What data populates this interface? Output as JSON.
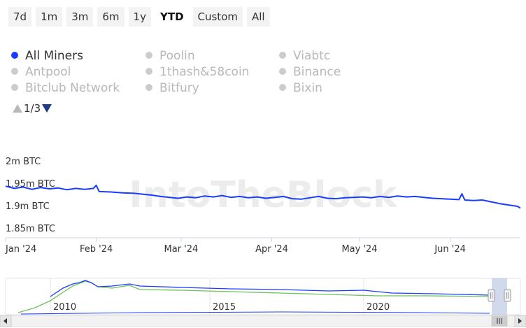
{
  "range_selector": {
    "buttons": [
      "7d",
      "1m",
      "3m",
      "6m",
      "1y",
      "YTD",
      "Custom",
      "All"
    ],
    "selected": "YTD"
  },
  "legend": {
    "items": [
      {
        "label": "All Miners",
        "active": true
      },
      {
        "label": "Antpool",
        "active": false
      },
      {
        "label": "Bitclub Network",
        "active": false
      },
      {
        "label": "Poolin",
        "active": false
      },
      {
        "label": "1thash&58coin",
        "active": false
      },
      {
        "label": "Bitfury",
        "active": false
      },
      {
        "label": "Viabtc",
        "active": false
      },
      {
        "label": "Binance",
        "active": false
      },
      {
        "label": "Bixin",
        "active": false
      }
    ],
    "page": "1/3"
  },
  "watermark": "IntoTheBlock",
  "chart_data": {
    "type": "line",
    "ylabel_unit": "BTC",
    "ylim": [
      1.85,
      2.0
    ],
    "yticks": [
      {
        "value": 2.0,
        "label": "2m BTC"
      },
      {
        "value": 1.95,
        "label": "1.95m BTC"
      },
      {
        "value": 1.9,
        "label": "1.9m BTC"
      },
      {
        "value": 1.85,
        "label": "1.85m BTC"
      }
    ],
    "xticks": [
      {
        "date": "2024-01-01",
        "label": "Jan '24"
      },
      {
        "date": "2024-02-01",
        "label": "Feb '24"
      },
      {
        "date": "2024-03-01",
        "label": "Mar '24"
      },
      {
        "date": "2024-04-01",
        "label": "Apr '24"
      },
      {
        "date": "2024-05-01",
        "label": "May '24"
      },
      {
        "date": "2024-06-01",
        "label": "Jun '24"
      }
    ],
    "xlim": [
      "2024-01-01",
      "2024-06-25"
    ],
    "grid": false,
    "series": [
      {
        "name": "All Miners",
        "color": "#1a3cff",
        "points": [
          [
            "2024-01-01",
            1.945
          ],
          [
            "2024-01-04",
            1.94
          ],
          [
            "2024-01-07",
            1.943
          ],
          [
            "2024-01-10",
            1.938
          ],
          [
            "2024-01-13",
            1.942
          ],
          [
            "2024-01-16",
            1.939
          ],
          [
            "2024-01-19",
            1.941
          ],
          [
            "2024-01-22",
            1.937
          ],
          [
            "2024-01-25",
            1.94
          ],
          [
            "2024-01-28",
            1.938
          ],
          [
            "2024-01-31",
            1.94
          ],
          [
            "2024-02-01",
            1.947
          ],
          [
            "2024-02-02",
            1.933
          ],
          [
            "2024-02-06",
            1.932
          ],
          [
            "2024-02-10",
            1.93
          ],
          [
            "2024-02-14",
            1.929
          ],
          [
            "2024-02-17",
            1.927
          ],
          [
            "2024-02-20",
            1.925
          ],
          [
            "2024-02-23",
            1.922
          ],
          [
            "2024-02-26",
            1.92
          ],
          [
            "2024-02-29",
            1.918
          ],
          [
            "2024-03-03",
            1.921
          ],
          [
            "2024-03-06",
            1.919
          ],
          [
            "2024-03-09",
            1.923
          ],
          [
            "2024-03-12",
            1.921
          ],
          [
            "2024-03-15",
            1.924
          ],
          [
            "2024-03-18",
            1.92
          ],
          [
            "2024-03-21",
            1.922
          ],
          [
            "2024-03-24",
            1.919
          ],
          [
            "2024-03-27",
            1.921
          ],
          [
            "2024-03-30",
            1.918
          ],
          [
            "2024-04-02",
            1.92
          ],
          [
            "2024-04-05",
            1.922
          ],
          [
            "2024-04-08",
            1.917
          ],
          [
            "2024-04-11",
            1.916
          ],
          [
            "2024-04-14",
            1.919
          ],
          [
            "2024-04-17",
            1.922
          ],
          [
            "2024-04-20",
            1.918
          ],
          [
            "2024-04-23",
            1.917
          ],
          [
            "2024-04-26",
            1.919
          ],
          [
            "2024-04-29",
            1.92
          ],
          [
            "2024-05-02",
            1.921
          ],
          [
            "2024-05-05",
            1.919
          ],
          [
            "2024-05-08",
            1.922
          ],
          [
            "2024-05-11",
            1.92
          ],
          [
            "2024-05-14",
            1.923
          ],
          [
            "2024-05-17",
            1.921
          ],
          [
            "2024-05-20",
            1.922
          ],
          [
            "2024-05-23",
            1.92
          ],
          [
            "2024-05-26",
            1.918
          ],
          [
            "2024-05-29",
            1.917
          ],
          [
            "2024-06-01",
            1.916
          ],
          [
            "2024-06-04",
            1.915
          ],
          [
            "2024-06-05",
            1.928
          ],
          [
            "2024-06-06",
            1.914
          ],
          [
            "2024-06-09",
            1.913
          ],
          [
            "2024-06-12",
            1.914
          ],
          [
            "2024-06-15",
            1.91
          ],
          [
            "2024-06-18",
            1.906
          ],
          [
            "2024-06-21",
            1.903
          ],
          [
            "2024-06-24",
            1.9
          ],
          [
            "2024-06-25",
            1.896
          ]
        ]
      }
    ],
    "navigator": {
      "xticks": [
        "2010",
        "2015",
        "2020"
      ]
    }
  }
}
